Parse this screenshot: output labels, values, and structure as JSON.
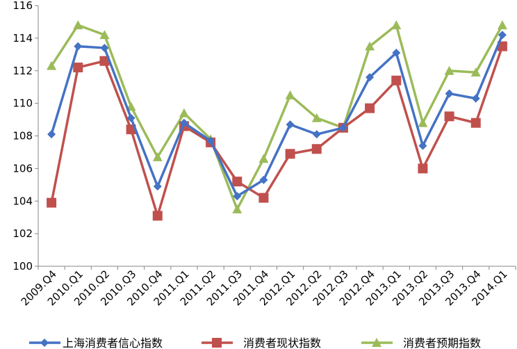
{
  "chart_data": {
    "type": "line",
    "title": "",
    "xlabel": "",
    "ylabel": "",
    "categories": [
      "2009.Q4",
      "2010.Q1",
      "2010.Q2",
      "2010.Q3",
      "2010.Q4",
      "2011.Q1",
      "2011.Q2",
      "2011.Q3",
      "2011.Q4",
      "2012.Q1",
      "2012.Q2",
      "2012.Q3",
      "2012.Q4",
      "2013.Q1",
      "2013.Q2",
      "2013.Q3",
      "2013.Q4",
      "2014.Q1"
    ],
    "ylim": [
      100,
      116
    ],
    "yticks": [
      100,
      102,
      104,
      106,
      108,
      110,
      112,
      114,
      116
    ],
    "grid": false,
    "legend_position": "bottom",
    "series": [
      {
        "name": "上海消费者信心指数",
        "color": "#4472C4",
        "marker": "diamond",
        "values": [
          108.1,
          113.5,
          113.4,
          109.1,
          104.9,
          108.8,
          107.7,
          104.3,
          105.3,
          108.7,
          108.1,
          108.5,
          111.6,
          113.1,
          107.4,
          110.6,
          110.3,
          114.2
        ]
      },
      {
        "name": "消费者现状指数",
        "color": "#C0504D",
        "marker": "square",
        "values": [
          103.9,
          112.2,
          112.6,
          108.4,
          103.1,
          108.6,
          107.6,
          105.2,
          104.2,
          106.9,
          107.2,
          108.5,
          109.7,
          111.4,
          106.0,
          109.2,
          108.8,
          113.5
        ]
      },
      {
        "name": "消费者预期指数",
        "color": "#9BBB59",
        "marker": "triangle",
        "values": [
          112.3,
          114.8,
          114.2,
          109.8,
          106.7,
          109.4,
          107.8,
          103.5,
          106.6,
          110.5,
          109.1,
          108.5,
          113.5,
          114.8,
          108.8,
          112.0,
          111.9,
          114.8
        ]
      }
    ]
  }
}
